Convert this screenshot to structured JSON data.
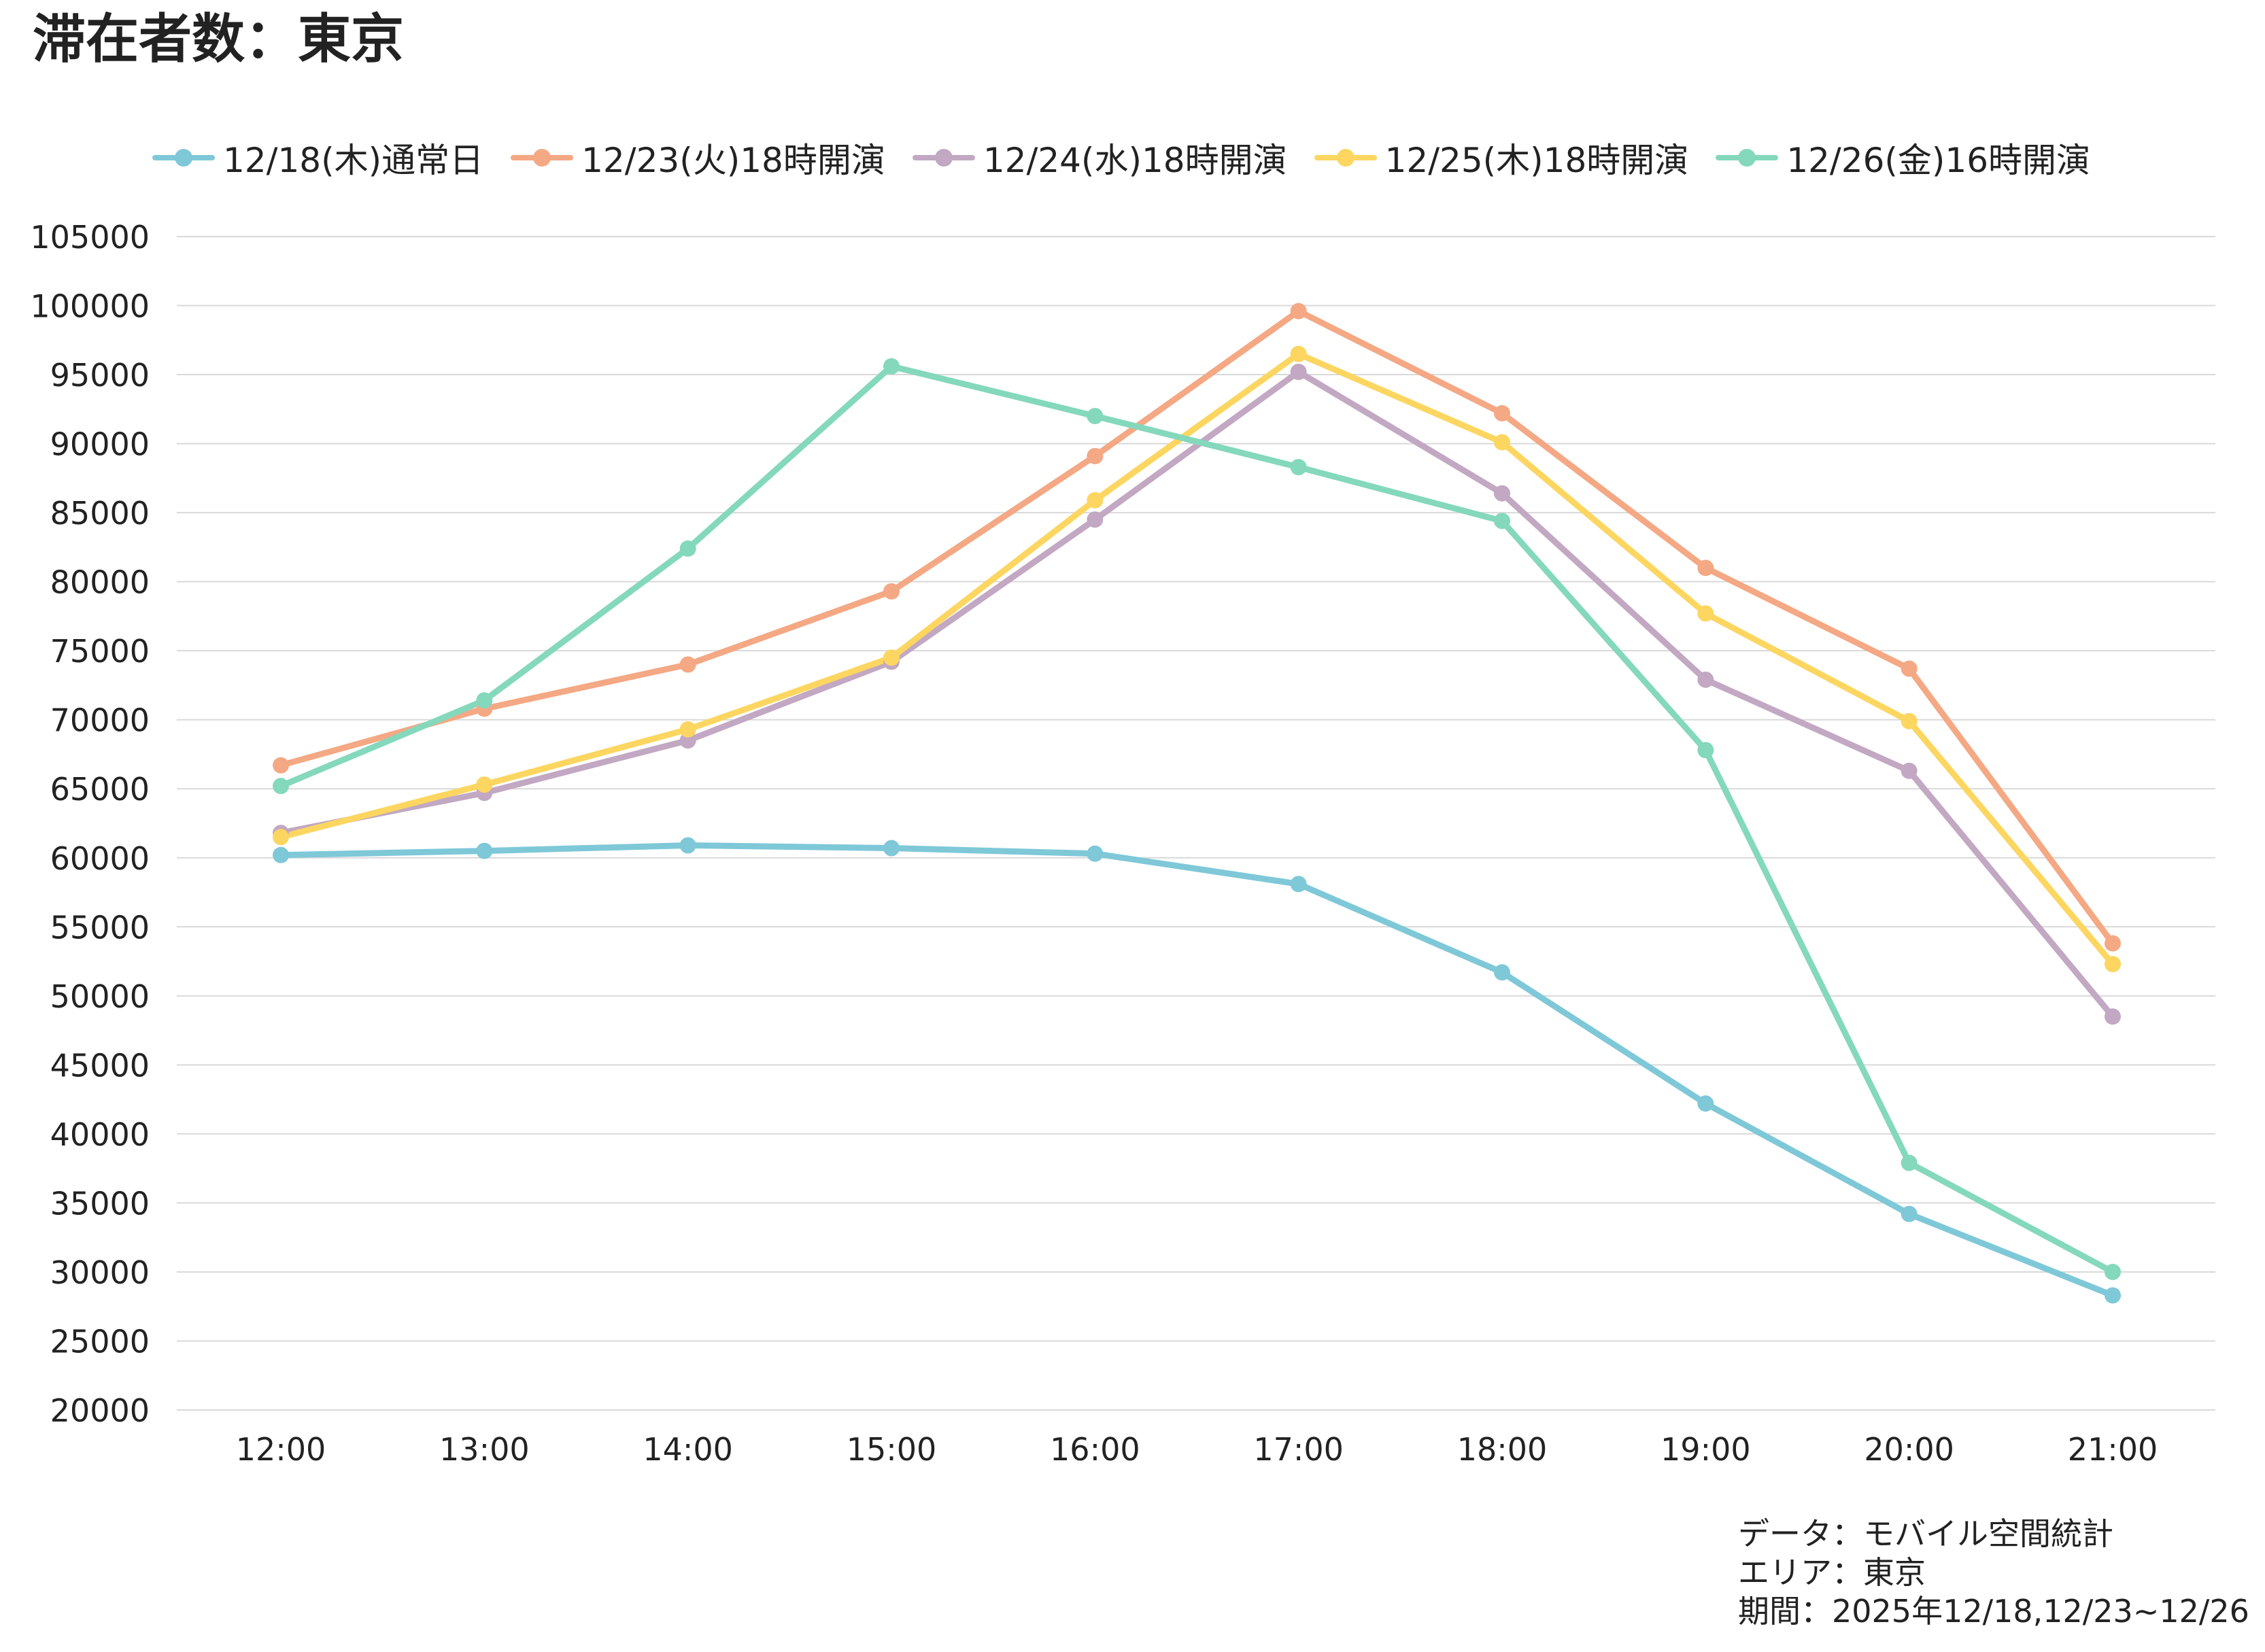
{
  "page": {
    "title": "滞在者数：東京",
    "notes": {
      "data": "データ：モバイル空間統計",
      "area": "エリア：東京",
      "period": "期間：2025年12/18,12/23~12/26"
    }
  },
  "chart_data": {
    "type": "line",
    "title": "滞在者数：東京",
    "xlabel": "",
    "ylabel": "",
    "categories": [
      "12:00",
      "13:00",
      "14:00",
      "15:00",
      "16:00",
      "17:00",
      "18:00",
      "19:00",
      "20:00",
      "21:00"
    ],
    "ylim": [
      20000,
      105000
    ],
    "ytick_step": 5000,
    "grid": true,
    "legend_position": "top",
    "series": [
      {
        "name": "12/18(木)通常日",
        "color": "#7EC8D8",
        "values": [
          60200,
          60500,
          60900,
          60700,
          60300,
          58100,
          51700,
          42200,
          34200,
          28300
        ]
      },
      {
        "name": "12/23(火)18時開演",
        "color": "#F4A884",
        "values": [
          66700,
          70800,
          74000,
          79300,
          89100,
          99600,
          92200,
          81000,
          73700,
          53800
        ]
      },
      {
        "name": "12/24(水)18時開演",
        "color": "#C2A8C2",
        "values": [
          61800,
          64700,
          68500,
          74200,
          84500,
          95200,
          86400,
          72900,
          66300,
          48500
        ]
      },
      {
        "name": "12/25(木)18時開演",
        "color": "#FCD660",
        "values": [
          61500,
          65300,
          69300,
          74500,
          85900,
          96500,
          90100,
          77700,
          69900,
          52300
        ]
      },
      {
        "name": "12/26(金)16時開演",
        "color": "#84D8BC",
        "values": [
          65200,
          71400,
          82400,
          95600,
          92000,
          88300,
          84400,
          67800,
          37900,
          30000
        ]
      }
    ]
  }
}
